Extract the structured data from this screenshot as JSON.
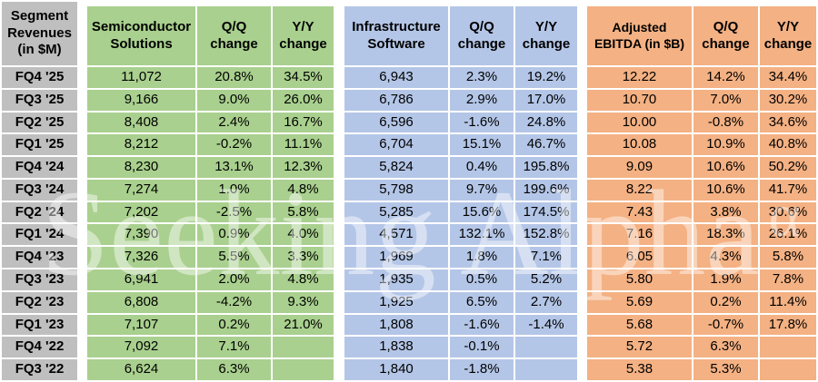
{
  "watermark": {
    "text": "Seeking Alpha",
    "symbol": "α"
  },
  "table": {
    "corner_header": "Segment Revenues (in $M)",
    "label_column_color": "#BFBFBF",
    "gridline_color": "#FFFFFF",
    "groups": [
      {
        "name": "Semiconductor Solutions",
        "qq_label": "Q/Q change",
        "yy_label": "Y/Y change",
        "color": "#A9D08E"
      },
      {
        "name": "Infrastructure Software",
        "qq_label": "Q/Q change",
        "yy_label": "Y/Y change",
        "color": "#B4C6E7"
      },
      {
        "name": "Adjusted EBITDA (in $B)",
        "qq_label": "Q/Q change",
        "yy_label": "Y/Y change",
        "color": "#F4B183"
      }
    ],
    "rows": [
      {
        "period": "FQ4 '25",
        "cells": [
          "11,072",
          "20.8%",
          "34.5%",
          "6,943",
          "2.3%",
          "19.2%",
          "12.22",
          "14.2%",
          "34.4%"
        ]
      },
      {
        "period": "FQ3 '25",
        "cells": [
          "9,166",
          "9.0%",
          "26.0%",
          "6,786",
          "2.9%",
          "17.0%",
          "10.70",
          "7.0%",
          "30.2%"
        ]
      },
      {
        "period": "FQ2 '25",
        "cells": [
          "8,408",
          "2.4%",
          "16.7%",
          "6,596",
          "-1.6%",
          "24.8%",
          "10.00",
          "-0.8%",
          "34.6%"
        ]
      },
      {
        "period": "FQ1 '25",
        "cells": [
          "8,212",
          "-0.2%",
          "11.1%",
          "6,704",
          "15.1%",
          "46.7%",
          "10.08",
          "10.9%",
          "40.8%"
        ]
      },
      {
        "period": "FQ4 '24",
        "cells": [
          "8,230",
          "13.1%",
          "12.3%",
          "5,824",
          "0.4%",
          "195.8%",
          "9.09",
          "10.6%",
          "50.2%"
        ]
      },
      {
        "period": "FQ3 '24",
        "cells": [
          "7,274",
          "1.0%",
          "4.8%",
          "5,798",
          "9.7%",
          "199.6%",
          "8.22",
          "10.6%",
          "41.7%"
        ]
      },
      {
        "period": "FQ2 '24",
        "cells": [
          "7,202",
          "-2.5%",
          "5.8%",
          "5,285",
          "15.6%",
          "174.5%",
          "7.43",
          "3.8%",
          "30.6%"
        ]
      },
      {
        "period": "FQ1 '24",
        "cells": [
          "7,390",
          "0.9%",
          "4.0%",
          "4,571",
          "132.1%",
          "152.8%",
          "7.16",
          "18.3%",
          "26.1%"
        ]
      },
      {
        "period": "FQ4 '23",
        "cells": [
          "7,326",
          "5.5%",
          "3.3%",
          "1,969",
          "1.8%",
          "7.1%",
          "6.05",
          "4.3%",
          "5.8%"
        ]
      },
      {
        "period": "FQ3 '23",
        "cells": [
          "6,941",
          "2.0%",
          "4.8%",
          "1,935",
          "0.5%",
          "5.2%",
          "5.80",
          "1.9%",
          "7.8%"
        ]
      },
      {
        "period": "FQ2 '23",
        "cells": [
          "6,808",
          "-4.2%",
          "9.3%",
          "1,925",
          "6.5%",
          "2.7%",
          "5.69",
          "0.2%",
          "11.4%"
        ]
      },
      {
        "period": "FQ1 '23",
        "cells": [
          "7,107",
          "0.2%",
          "21.0%",
          "1,808",
          "-1.6%",
          "-1.4%",
          "5.68",
          "-0.7%",
          "17.8%"
        ]
      },
      {
        "period": "FQ4 '22",
        "cells": [
          "7,092",
          "7.1%",
          "",
          "1,838",
          "-0.1%",
          "",
          "5.72",
          "6.3%",
          ""
        ]
      },
      {
        "period": "FQ3 '22",
        "cells": [
          "6,624",
          "6.3%",
          "",
          "1,840",
          "-1.8%",
          "",
          "5.38",
          "5.3%",
          ""
        ]
      }
    ]
  },
  "chart_data": {
    "type": "table",
    "title": "Segment Revenues (in $M)",
    "categories": [
      "FQ4 '25",
      "FQ3 '25",
      "FQ2 '25",
      "FQ1 '25",
      "FQ4 '24",
      "FQ3 '24",
      "FQ2 '24",
      "FQ1 '24",
      "FQ4 '23",
      "FQ3 '23",
      "FQ2 '23",
      "FQ1 '23",
      "FQ4 '22",
      "FQ3 '22"
    ],
    "series": [
      {
        "name": "Semiconductor Solutions ($M)",
        "values": [
          11072,
          9166,
          8408,
          8212,
          8230,
          7274,
          7202,
          7390,
          7326,
          6941,
          6808,
          7107,
          7092,
          6624
        ]
      },
      {
        "name": "Semiconductor Solutions Q/Q change (%)",
        "values": [
          20.8,
          9.0,
          2.4,
          -0.2,
          13.1,
          1.0,
          -2.5,
          0.9,
          5.5,
          2.0,
          -4.2,
          0.2,
          7.1,
          6.3
        ]
      },
      {
        "name": "Semiconductor Solutions Y/Y change (%)",
        "values": [
          34.5,
          26.0,
          16.7,
          11.1,
          12.3,
          4.8,
          5.8,
          4.0,
          3.3,
          4.8,
          9.3,
          21.0,
          null,
          null
        ]
      },
      {
        "name": "Infrastructure Software ($M)",
        "values": [
          6943,
          6786,
          6596,
          6704,
          5824,
          5798,
          5285,
          4571,
          1969,
          1935,
          1925,
          1808,
          1838,
          1840
        ]
      },
      {
        "name": "Infrastructure Software Q/Q change (%)",
        "values": [
          2.3,
          2.9,
          -1.6,
          15.1,
          0.4,
          9.7,
          15.6,
          132.1,
          1.8,
          0.5,
          6.5,
          -1.6,
          -0.1,
          -1.8
        ]
      },
      {
        "name": "Infrastructure Software Y/Y change (%)",
        "values": [
          19.2,
          17.0,
          24.8,
          46.7,
          195.8,
          199.6,
          174.5,
          152.8,
          7.1,
          5.2,
          2.7,
          -1.4,
          null,
          null
        ]
      },
      {
        "name": "Adjusted EBITDA ($B)",
        "values": [
          12.22,
          10.7,
          10.0,
          10.08,
          9.09,
          8.22,
          7.43,
          7.16,
          6.05,
          5.8,
          5.69,
          5.68,
          5.72,
          5.38
        ]
      },
      {
        "name": "Adjusted EBITDA Q/Q change (%)",
        "values": [
          14.2,
          7.0,
          -0.8,
          10.9,
          10.6,
          10.6,
          3.8,
          18.3,
          4.3,
          1.9,
          0.2,
          -0.7,
          6.3,
          5.3
        ]
      },
      {
        "name": "Adjusted EBITDA Y/Y change (%)",
        "values": [
          34.4,
          30.2,
          34.6,
          40.8,
          50.2,
          41.7,
          30.6,
          26.1,
          5.8,
          7.8,
          11.4,
          17.8,
          null,
          null
        ]
      }
    ]
  }
}
